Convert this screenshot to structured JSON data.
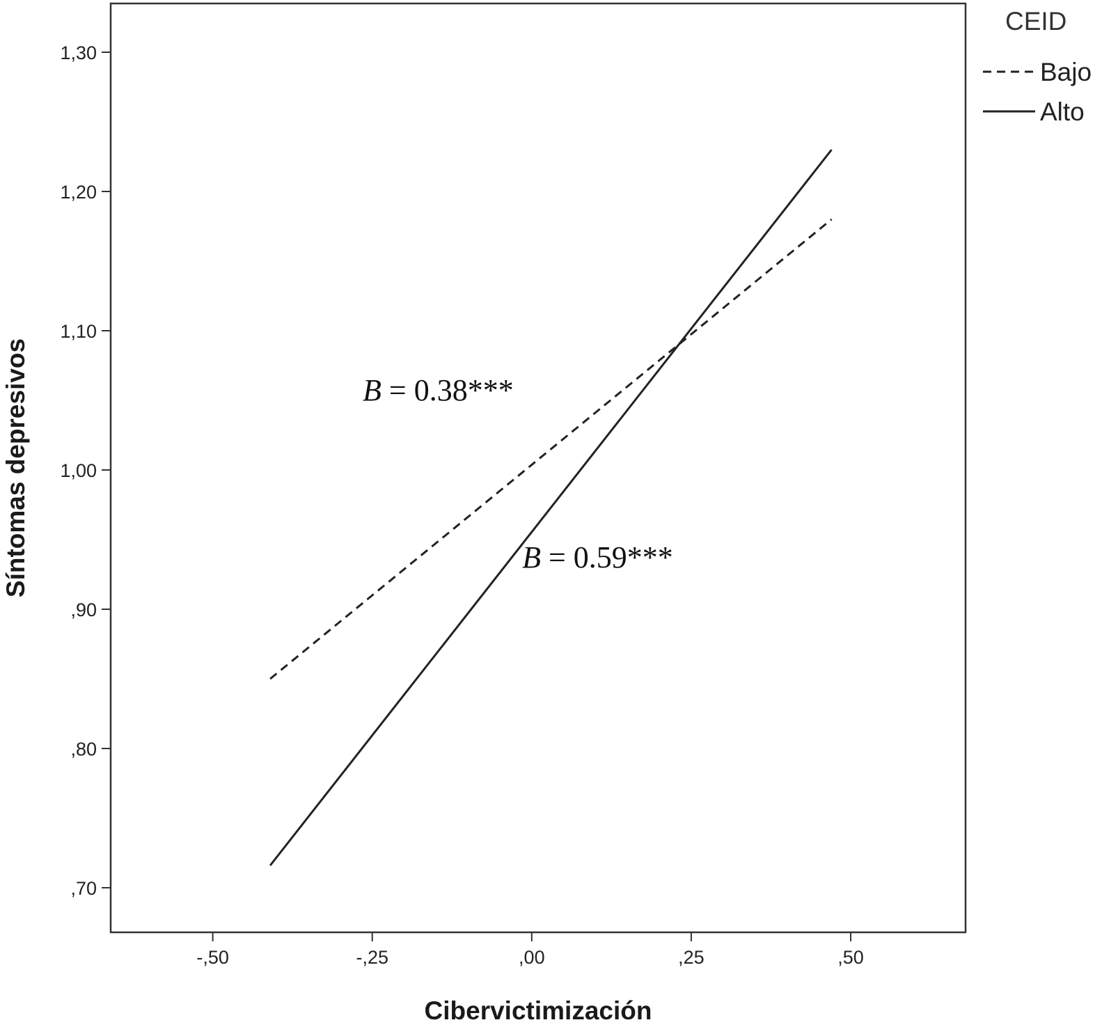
{
  "chart_data": {
    "type": "line",
    "title": "",
    "xlabel": "Cibervictimización",
    "ylabel": "Síntomas depresivos",
    "xlim": [
      -0.66,
      0.68
    ],
    "ylim": [
      0.668,
      1.335
    ],
    "x_ticks": [
      -0.5,
      -0.25,
      0.0,
      0.25,
      0.5
    ],
    "x_tick_labels": [
      "-,50",
      "-,25",
      ",00",
      ",25",
      ",50"
    ],
    "y_ticks": [
      0.7,
      0.8,
      0.9,
      1.0,
      1.1,
      1.2,
      1.3
    ],
    "y_tick_labels": [
      ",70",
      ",80",
      ",90",
      "1,00",
      "1,10",
      "1,20",
      "1,30"
    ],
    "grid": false,
    "legend": {
      "title": "CEID",
      "position": "top-right outside"
    },
    "series": [
      {
        "name": "Bajo",
        "style": "dashed",
        "color": "#222222",
        "x": [
          -0.41,
          0.47
        ],
        "y": [
          0.85,
          1.18
        ]
      },
      {
        "name": "Alto",
        "style": "solid",
        "color": "#222222",
        "x": [
          -0.41,
          0.47
        ],
        "y": [
          0.716,
          1.23
        ]
      }
    ],
    "annotations": [
      {
        "series": "Bajo",
        "var": "B",
        "value": "0.38***",
        "x": -0.265,
        "y": 1.05
      },
      {
        "series": "Alto",
        "var": "B",
        "value": "0.59***",
        "x": -0.015,
        "y": 0.93
      }
    ]
  }
}
